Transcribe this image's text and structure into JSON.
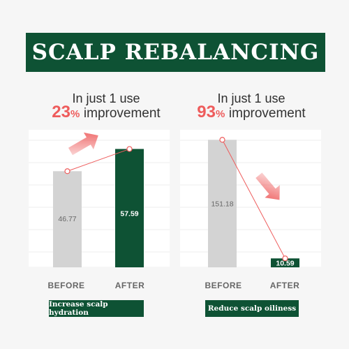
{
  "title": "SCALP REBALANCING",
  "colors": {
    "accent_green": "#0e5234",
    "before_gray": "#d3d3d3",
    "highlight_red": "#ee5c5c"
  },
  "chart_data": [
    {
      "type": "bar",
      "subtitle": "In just 1 use",
      "headline": {
        "percent": "23",
        "percent_sign": "%",
        "text": "improvement"
      },
      "categories": [
        "BEFORE",
        "AFTER"
      ],
      "values": [
        46.77,
        57.59
      ],
      "value_labels": [
        "46.77",
        "57.59"
      ],
      "ylim": [
        0,
        66.9
      ],
      "trend": "up",
      "caption": "Increase scalp hydration",
      "gridlines": true
    },
    {
      "type": "bar",
      "subtitle": "In just 1 use",
      "headline": {
        "percent": "93",
        "percent_sign": "%",
        "text": "improvement"
      },
      "categories": [
        "BEFORE",
        "AFTER"
      ],
      "values": [
        151.18,
        10.59
      ],
      "value_labels": [
        "151.18",
        "10.59"
      ],
      "ylim": [
        0,
        163
      ],
      "trend": "down",
      "caption": "Reduce scalp oiliness",
      "gridlines": true
    }
  ]
}
